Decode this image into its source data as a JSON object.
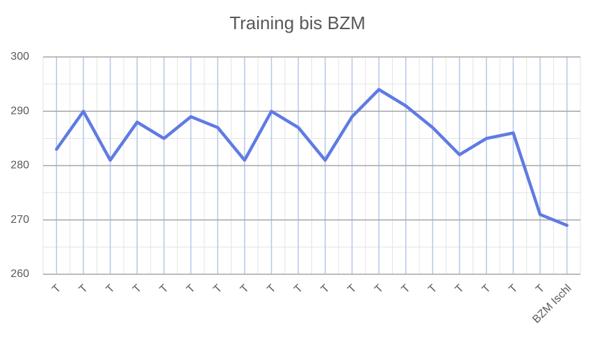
{
  "chart_data": {
    "type": "line",
    "title": "Training bis BZM",
    "categories": [
      "T",
      "T",
      "T",
      "T",
      "T",
      "T",
      "T",
      "T",
      "T",
      "T",
      "T",
      "T",
      "T",
      "T",
      "T",
      "T",
      "T",
      "T",
      "T",
      "BZM Ischl"
    ],
    "series": [
      {
        "name": "Training",
        "color": "#5f7be3",
        "values": [
          283,
          290,
          281,
          288,
          285,
          289,
          287,
          281,
          290,
          287,
          281,
          289,
          294,
          291,
          287,
          282,
          285,
          286,
          271,
          269
        ]
      }
    ],
    "ylim": [
      260,
      300
    ],
    "yticks": [
      260,
      270,
      280,
      290,
      300
    ],
    "y_minor_ticks": [
      265,
      275,
      285,
      295
    ],
    "grid": true
  }
}
